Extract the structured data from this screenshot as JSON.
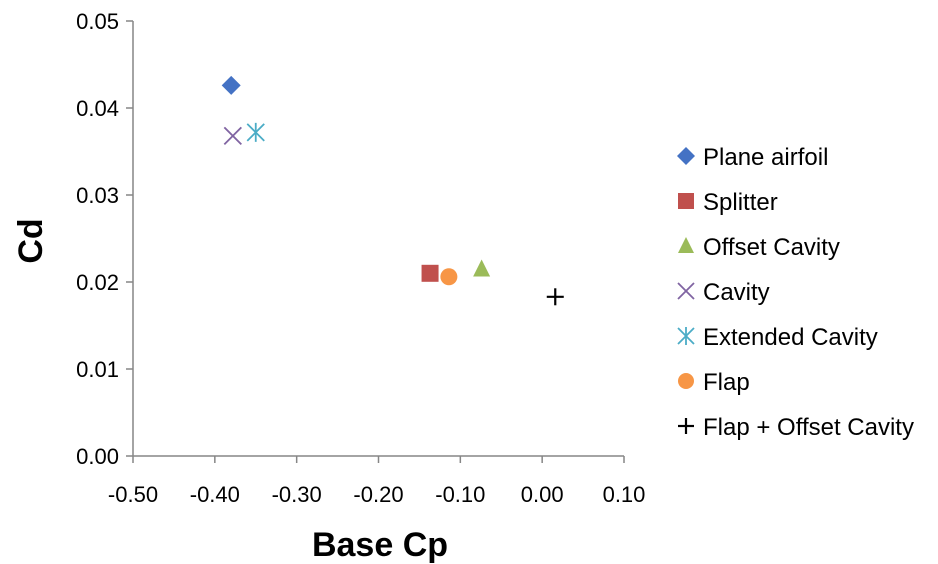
{
  "chart_data": {
    "type": "scatter",
    "title": "",
    "xlabel": "Base Cp",
    "ylabel": "Cd",
    "xlim": [
      -0.5,
      0.1
    ],
    "ylim": [
      0,
      0.05
    ],
    "x_ticks": [
      "-0.50",
      "-0.40",
      "-0.30",
      "-0.20",
      "-0.10",
      "0.00",
      "0.10"
    ],
    "y_ticks": [
      "0.00",
      "0.01",
      "0.02",
      "0.03",
      "0.04",
      "0.05"
    ],
    "grid": false,
    "legend_position": "right",
    "series": [
      {
        "name": "Plane airfoil",
        "marker": "diamond",
        "color": "#4472C4",
        "x": [
          -0.38
        ],
        "y": [
          0.0426
        ]
      },
      {
        "name": "Splitter",
        "marker": "square",
        "color": "#C0504D",
        "x": [
          -0.137
        ],
        "y": [
          0.021
        ]
      },
      {
        "name": "Offset Cavity",
        "marker": "triangle",
        "color": "#9BBB59",
        "x": [
          -0.074
        ],
        "y": [
          0.0215
        ]
      },
      {
        "name": "Cavity",
        "marker": "x",
        "color": "#8064A2",
        "x": [
          -0.378
        ],
        "y": [
          0.0368
        ]
      },
      {
        "name": "Extended Cavity",
        "marker": "star",
        "color": "#4BACC6",
        "x": [
          -0.35
        ],
        "y": [
          0.0372
        ]
      },
      {
        "name": "Flap",
        "marker": "circle",
        "color": "#F79646",
        "x": [
          -0.114
        ],
        "y": [
          0.0206
        ]
      },
      {
        "name": "Flap + Offset Cavity",
        "marker": "plus",
        "color": "#000000",
        "x": [
          0.016
        ],
        "y": [
          0.0183
        ]
      }
    ]
  }
}
